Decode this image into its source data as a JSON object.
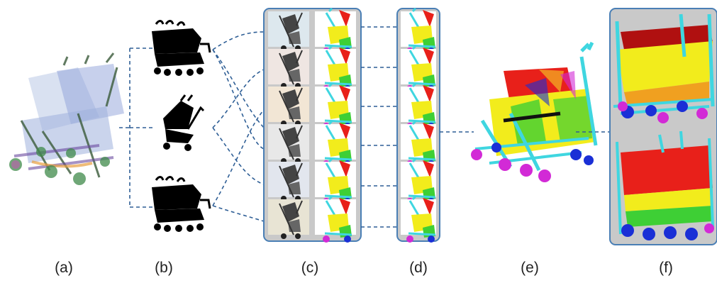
{
  "labels": {
    "a": "(a)",
    "b": "(b)",
    "c": "(c)",
    "d": "(d)",
    "e": "(e)",
    "f": "(f)"
  },
  "colors": {
    "panel_border": "#4a7fb5",
    "panel_fill": "#c9c9c9",
    "dash": "#2f5f96",
    "silhouette": "#000000",
    "seg_red": "#e8201a",
    "seg_yellow": "#f2ec1c",
    "seg_green": "#3ecf35",
    "seg_cyan": "#3fd6e0",
    "seg_blue": "#1a2fd6",
    "seg_magenta": "#d22ad6"
  }
}
